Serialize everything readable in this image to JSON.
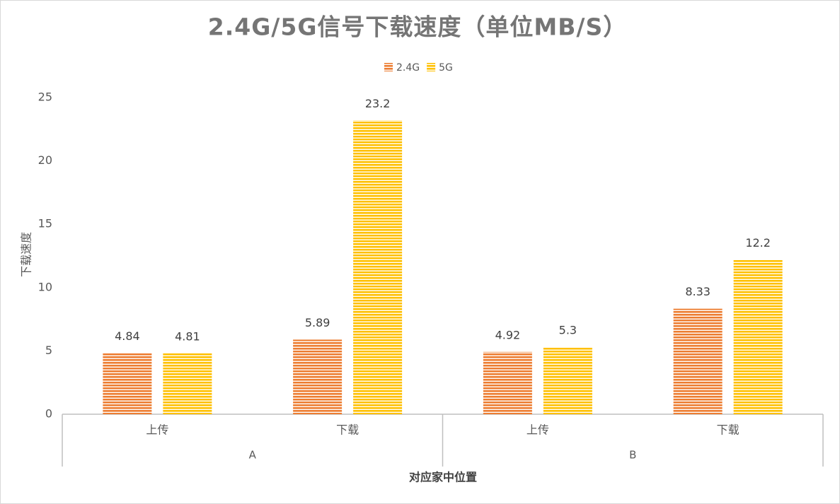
{
  "chart_data": {
    "type": "bar",
    "title": "2.4G/5G信号下载速度（单位MB/S）",
    "x_label": "对应家中位置",
    "y_label": "下载速度",
    "groups": [
      {
        "name": "A",
        "categories": [
          "上传",
          "下载"
        ]
      },
      {
        "name": "B",
        "categories": [
          "上传",
          "下载"
        ]
      }
    ],
    "series": [
      {
        "name": "2.4G",
        "color": "#ED7D31",
        "values": [
          4.84,
          5.89,
          4.92,
          8.33
        ]
      },
      {
        "name": "5G",
        "color": "#FFC000",
        "values": [
          4.81,
          23.2,
          5.3,
          12.2
        ]
      }
    ],
    "ylim": [
      0,
      25
    ],
    "yticks": [
      0,
      5,
      10,
      15,
      20,
      25
    ],
    "grid": false,
    "legend": "top",
    "pattern": "horizontal-stripes"
  }
}
